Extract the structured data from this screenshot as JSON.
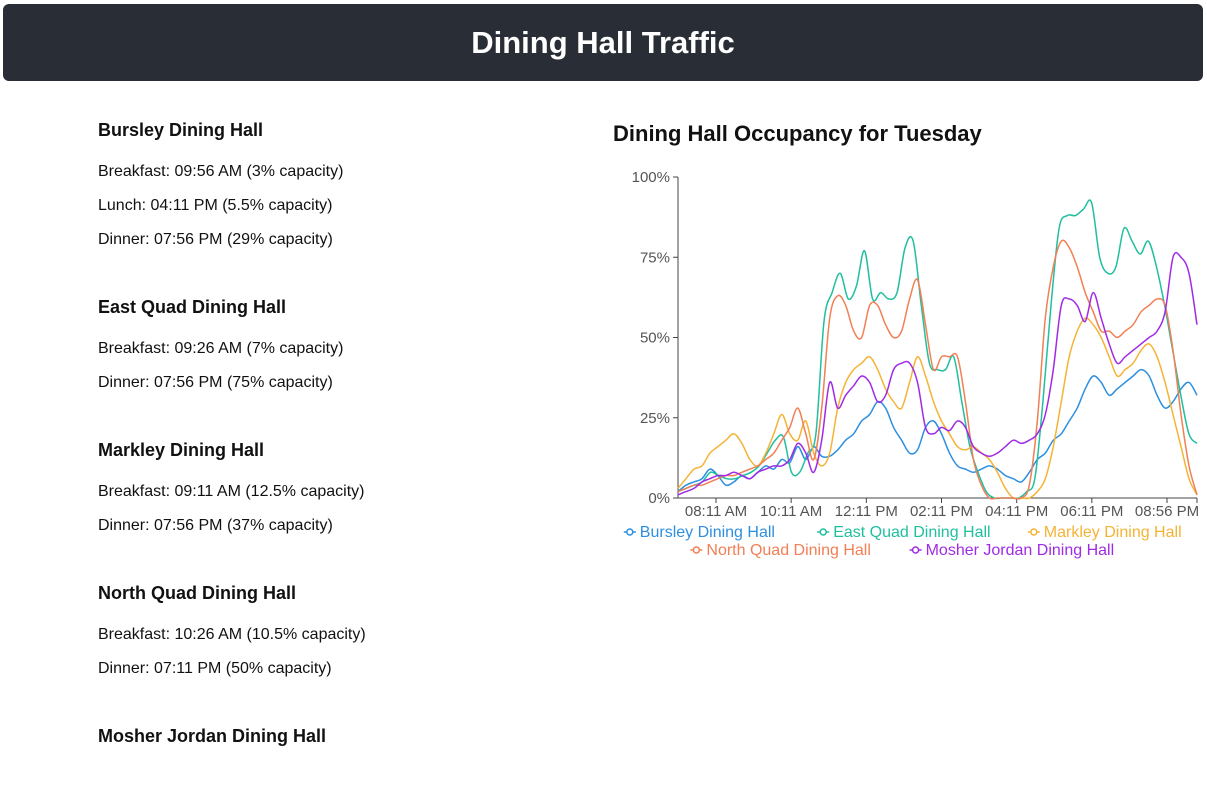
{
  "header": {
    "title": "Dining Hall Traffic"
  },
  "halls": [
    {
      "name": "Bursley Dining Hall",
      "meals": [
        "Breakfast: 09:56 AM (3% capacity)",
        "Lunch: 04:11 PM (5.5% capacity)",
        "Dinner: 07:56 PM (29% capacity)"
      ]
    },
    {
      "name": "East Quad Dining Hall",
      "meals": [
        "Breakfast: 09:26 AM (7% capacity)",
        "Dinner: 07:56 PM (75% capacity)"
      ]
    },
    {
      "name": "Markley Dining Hall",
      "meals": [
        "Breakfast: 09:11 AM (12.5% capacity)",
        "Dinner: 07:56 PM (37% capacity)"
      ]
    },
    {
      "name": "North Quad Dining Hall",
      "meals": [
        "Breakfast: 10:26 AM (10.5% capacity)",
        "Dinner: 07:11 PM (50% capacity)"
      ]
    },
    {
      "name": "Mosher Jordan Dining Hall",
      "meals": []
    }
  ],
  "chart_data": {
    "type": "line",
    "title": "Dining Hall Occupancy for Tuesday",
    "xlabel": "",
    "ylabel": "",
    "ylim": [
      0,
      100
    ],
    "yticks": [
      "0%",
      "25%",
      "50%",
      "75%",
      "100%"
    ],
    "xticks": [
      "08:11 AM",
      "10:11 AM",
      "12:11 PM",
      "02:11 PM",
      "04:11 PM",
      "06:11 PM",
      "08:56 PM"
    ],
    "grid": false,
    "legend_position": "bottom",
    "series": [
      {
        "name": "Bursley Dining Hall",
        "color": "#2d8fe0",
        "values": [
          2,
          4,
          5,
          6,
          9,
          7,
          4,
          5,
          7,
          6,
          8,
          10,
          9,
          12,
          11,
          16,
          12,
          16,
          13,
          13,
          15,
          18,
          20,
          24,
          26,
          30,
          28,
          22,
          18,
          14,
          15,
          22,
          24,
          20,
          14,
          10,
          9,
          8,
          9,
          10,
          9,
          7,
          6,
          5,
          8,
          12,
          14,
          18,
          20,
          24,
          28,
          34,
          38,
          36,
          32,
          34,
          36,
          38,
          40,
          38,
          32,
          28,
          30,
          34,
          36,
          32
        ]
      },
      {
        "name": "East Quad Dining Hall",
        "color": "#1fbfa0",
        "values": [
          2,
          3,
          4,
          5,
          8,
          7,
          6,
          6,
          7,
          8,
          10,
          14,
          18,
          19,
          8,
          8,
          14,
          20,
          55,
          64,
          70,
          62,
          66,
          77,
          62,
          64,
          62,
          64,
          78,
          80,
          60,
          42,
          40,
          40,
          44,
          30,
          16,
          8,
          2,
          0,
          0,
          0,
          0,
          2,
          6,
          30,
          60,
          84,
          88,
          88,
          90,
          92,
          75,
          70,
          72,
          84,
          80,
          76,
          80,
          72,
          60,
          46,
          32,
          20,
          17
        ]
      },
      {
        "name": "Markley Dining Hall",
        "color": "#f5b335",
        "values": [
          3,
          6,
          9,
          10,
          14,
          16,
          18,
          20,
          17,
          12,
          10,
          14,
          20,
          26,
          20,
          18,
          24,
          14,
          10,
          14,
          28,
          36,
          40,
          42,
          44,
          40,
          34,
          30,
          28,
          36,
          44,
          38,
          30,
          24,
          20,
          16,
          15,
          16,
          14,
          12,
          8,
          3,
          0,
          0,
          0,
          2,
          6,
          16,
          30,
          44,
          52,
          56,
          54,
          50,
          44,
          38,
          40,
          42,
          46,
          48,
          44,
          36,
          26,
          16,
          6,
          1
        ]
      },
      {
        "name": "North Quad Dining Hall",
        "color": "#f27f55",
        "values": [
          2,
          3,
          4,
          4,
          5,
          6,
          7,
          7,
          8,
          9,
          10,
          12,
          14,
          18,
          22,
          28,
          20,
          12,
          28,
          56,
          63,
          60,
          52,
          50,
          60,
          60,
          54,
          50,
          52,
          62,
          68,
          54,
          40,
          44,
          44,
          44,
          30,
          12,
          4,
          0,
          0,
          0,
          0,
          0,
          4,
          24,
          56,
          72,
          80,
          78,
          72,
          64,
          58,
          52,
          52,
          50,
          52,
          54,
          58,
          60,
          62,
          60,
          46,
          26,
          10,
          1
        ]
      },
      {
        "name": "Mosher Jordan Dining Hall",
        "color": "#a02be6",
        "values": [
          1,
          2,
          3,
          5,
          6,
          7,
          7,
          8,
          7,
          6,
          8,
          9,
          10,
          10,
          12,
          17,
          14,
          8,
          18,
          36,
          28,
          32,
          35,
          38,
          36,
          30,
          32,
          40,
          42,
          42,
          36,
          22,
          20,
          22,
          21,
          24,
          22,
          16,
          14,
          13,
          14,
          16,
          18,
          17,
          18,
          20,
          26,
          40,
          60,
          62,
          60,
          55,
          64,
          56,
          48,
          42,
          44,
          46,
          48,
          50,
          52,
          58,
          75,
          75,
          70,
          54
        ]
      }
    ]
  }
}
